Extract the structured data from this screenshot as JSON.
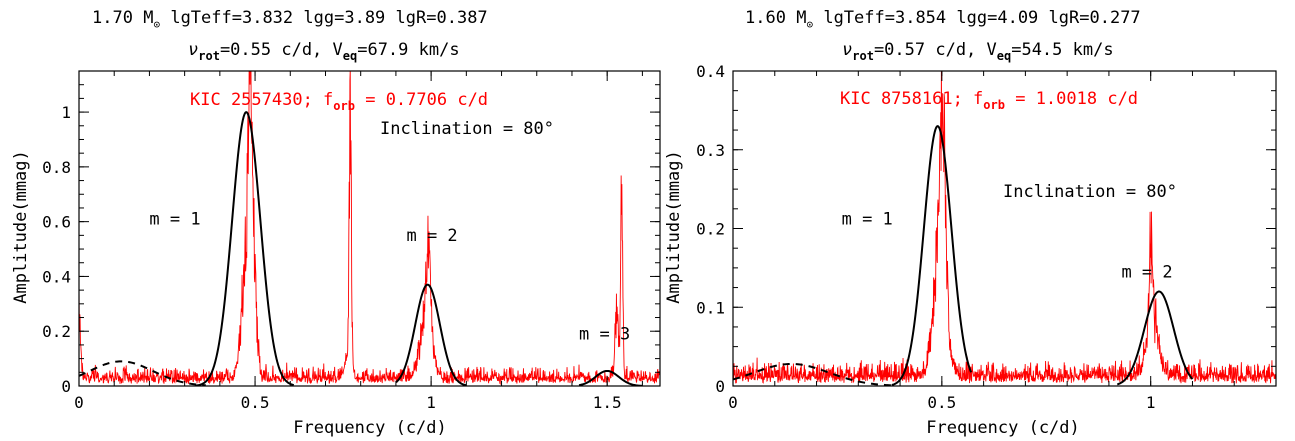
{
  "chart_data": [
    {
      "type": "line",
      "header": {
        "mass": "1.70",
        "mass_unit": "M",
        "lgTeff": "lgTeff=3.832",
        "lgg": "lgg=3.89",
        "lgR": "lgR=0.387",
        "nu": "ν",
        "nu_sub": "rot",
        "nu_val": "=0.55 c/d, V",
        "v_sub": "eq",
        "v_val": "=67.9 km/s"
      },
      "star_label": {
        "kic": "KIC 2557430; f",
        "sub": "orb",
        "val": " = 0.7706 c/d"
      },
      "inclination": "Inclination = 80°",
      "mode_labels": [
        {
          "text": "m = 1",
          "x": 0.2,
          "y": 0.59
        },
        {
          "text": "m = 2",
          "x": 0.93,
          "y": 0.53
        },
        {
          "text": "m = 3",
          "x": 1.42,
          "y": 0.17
        }
      ],
      "xlabel": "Frequency (c/d)",
      "ylabel": "Amplitude(mmag)",
      "xlim": [
        0,
        1.65
      ],
      "ylim": [
        0,
        1.15
      ],
      "xticks": [
        0,
        0.5,
        1,
        1.5
      ],
      "xtick_labels": [
        "0",
        "0.5",
        "1",
        "1.5"
      ],
      "yticks": [
        0,
        0.2,
        0.4,
        0.6,
        0.8,
        1
      ],
      "ytick_labels": [
        "0",
        "0.2",
        "0.4",
        "0.6",
        "0.8",
        "1"
      ],
      "noise_floor": 0.05,
      "observed_peaks": [
        {
          "x": 0.0,
          "height": 0.33,
          "width": 0.004
        },
        {
          "x": 0.475,
          "height": 0.55,
          "width": 0.013
        },
        {
          "x": 0.486,
          "height": 0.88,
          "width": 0.006
        },
        {
          "x": 0.495,
          "height": 0.45,
          "width": 0.009
        },
        {
          "x": 0.7706,
          "height": 1.15,
          "width": 0.003
        },
        {
          "x": 0.765,
          "height": 0.16,
          "width": 0.008
        },
        {
          "x": 0.985,
          "height": 0.32,
          "width": 0.016
        },
        {
          "x": 0.993,
          "height": 0.4,
          "width": 0.006
        },
        {
          "x": 1.527,
          "height": 0.3,
          "width": 0.005
        },
        {
          "x": 1.5412,
          "height": 0.91,
          "width": 0.003
        }
      ],
      "model_curves": [
        {
          "name": "m = 1",
          "style": "solid",
          "center": 0.475,
          "amp": 1.0,
          "sigma": 0.04,
          "range": [
            0.33,
            0.61
          ]
        },
        {
          "name": "m = 2",
          "style": "solid",
          "center": 0.99,
          "amp": 0.37,
          "sigma": 0.035,
          "range": [
            0.9,
            1.1
          ]
        },
        {
          "name": "m = 3",
          "style": "solid",
          "center": 1.5,
          "amp": 0.055,
          "sigma": 0.033,
          "range": [
            1.42,
            1.6
          ]
        },
        {
          "name": "m = 0",
          "style": "dashed",
          "center": 0.12,
          "amp": 0.09,
          "sigma": 0.09,
          "range": [
            0.0,
            0.36
          ]
        }
      ]
    },
    {
      "type": "line",
      "header": {
        "mass": "1.60",
        "mass_unit": "M",
        "lgTeff": "lgTeff=3.854",
        "lgg": "lgg=4.09",
        "lgR": "lgR=0.277",
        "nu": "ν",
        "nu_sub": "rot",
        "nu_val": "=0.57 c/d, V",
        "v_sub": "eq",
        "v_val": "=54.5 km/s"
      },
      "star_label": {
        "kic": "KIC 8758161; f",
        "sub": "orb",
        "val": " = 1.0018 c/d"
      },
      "inclination": "Inclination = 80°",
      "mode_labels": [
        {
          "text": "m = 1",
          "x": 0.26,
          "y": 0.205
        },
        {
          "text": "m = 2",
          "x": 0.93,
          "y": 0.138
        }
      ],
      "xlabel": "Frequency (c/d)",
      "ylabel": "Amplitude(mmag)",
      "xlim": [
        0,
        1.3
      ],
      "ylim": [
        0,
        0.4
      ],
      "xticks": [
        0,
        0.5,
        1
      ],
      "xtick_labels": [
        "0",
        "0.5",
        "1"
      ],
      "yticks": [
        0,
        0.1,
        0.2,
        0.3,
        0.4
      ],
      "ytick_labels": [
        "0",
        "0.1",
        "0.2",
        "0.3",
        "0.4"
      ],
      "noise_floor": 0.022,
      "observed_peaks": [
        {
          "x": 0.495,
          "height": 0.22,
          "width": 0.015
        },
        {
          "x": 0.502,
          "height": 0.3,
          "width": 0.006
        },
        {
          "x": 1.0,
          "height": 0.16,
          "width": 0.004
        },
        {
          "x": 1.005,
          "height": 0.1,
          "width": 0.014
        }
      ],
      "model_curves": [
        {
          "name": "m = 1",
          "style": "solid",
          "center": 0.49,
          "amp": 0.33,
          "sigma": 0.033,
          "range": [
            0.38,
            0.57
          ]
        },
        {
          "name": "m = 2",
          "style": "solid",
          "center": 1.02,
          "amp": 0.12,
          "sigma": 0.035,
          "range": [
            0.92,
            1.1
          ]
        },
        {
          "name": "m = 0",
          "style": "dashed",
          "center": 0.14,
          "amp": 0.028,
          "sigma": 0.09,
          "range": [
            0.0,
            0.38
          ]
        }
      ]
    }
  ]
}
